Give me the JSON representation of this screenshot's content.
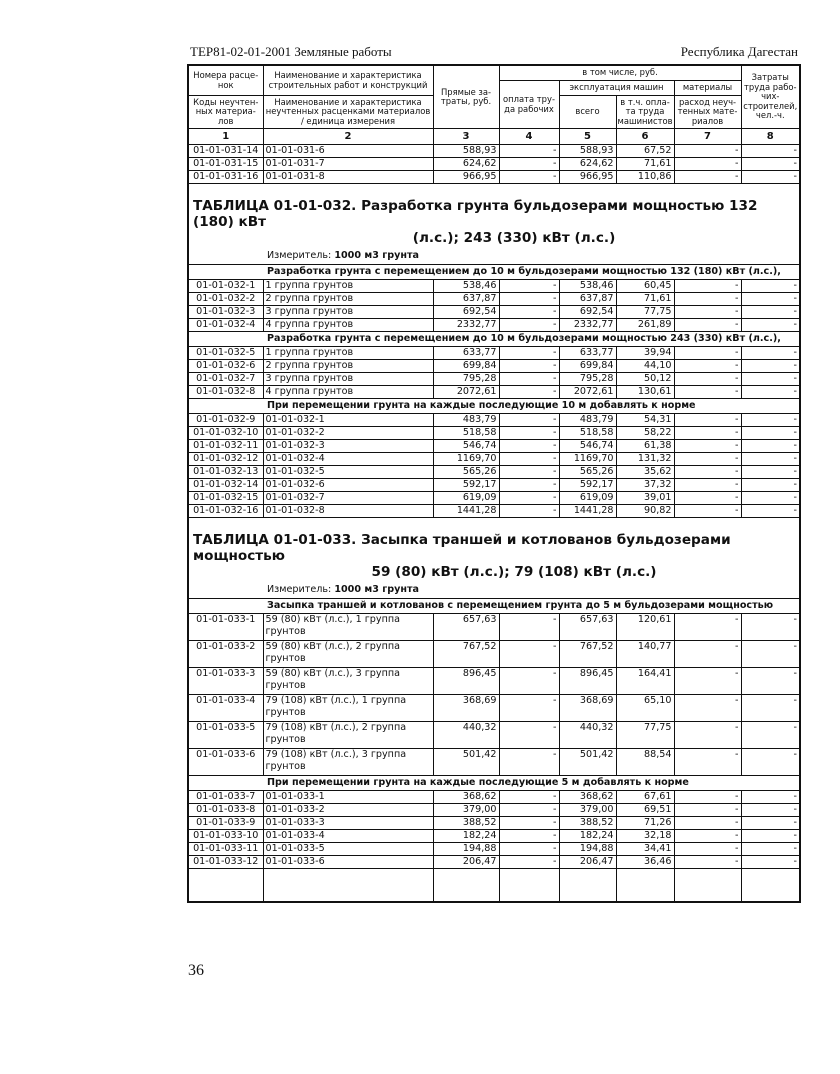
{
  "header": {
    "left": "ТЕР81-02-01-2001 Земляные работы",
    "right": "Республика Дагестан"
  },
  "columns": {
    "c1a": "Номера расце-нок",
    "c2a": "Наименование и характеристика строительных работ и конструкций",
    "c3": "Прямые за-траты, руб.",
    "group": "в том числе, руб.",
    "c8": "Затраты труда рабо-чих-строителей, чел.-ч.",
    "c4": "оплата тру-да рабочих",
    "machines": "эксплуатация машин",
    "materials": "материалы",
    "c1b": "Коды неучтен-ных материа-лов",
    "c2b": "Наименование и характеристика неучтенных расценками материалов / единица измерения",
    "c5": "всего",
    "c6": "в т.ч. опла-та труда машинистов",
    "c7": "расход неуч-тенных мате-риалов",
    "index": [
      "1",
      "2",
      "3",
      "4",
      "5",
      "6",
      "7",
      "8"
    ]
  },
  "blocks": [
    {
      "type": "rows",
      "rows": [
        [
          "01-01-031-14",
          "01-01-031-6",
          "588,93",
          "-",
          "588,93",
          "67,52",
          "-",
          "-"
        ],
        [
          "01-01-031-15",
          "01-01-031-7",
          "624,62",
          "-",
          "624,62",
          "71,61",
          "-",
          "-"
        ],
        [
          "01-01-031-16",
          "01-01-031-8",
          "966,95",
          "-",
          "966,95",
          "110,86",
          "-",
          "-"
        ]
      ]
    },
    {
      "type": "title",
      "line1": "ТАБЛИЦА  01-01-032.  Разработка грунта бульдозерами мощностью 132 (180) кВт",
      "line2": "(л.с.); 243 (330) кВт (л.с.)"
    },
    {
      "type": "measure",
      "label": "Измеритель: ",
      "value": "1000 м3 грунта"
    },
    {
      "type": "sub",
      "text": "Разработка грунта с перемещением до 10 м бульдозерами мощностью 132 (180) кВт (л.с.),"
    },
    {
      "type": "rows",
      "rows": [
        [
          "01-01-032-1",
          "1 группа грунтов",
          "538,46",
          "-",
          "538,46",
          "60,45",
          "-",
          "-"
        ],
        [
          "01-01-032-2",
          "2 группа грунтов",
          "637,87",
          "-",
          "637,87",
          "71,61",
          "-",
          "-"
        ],
        [
          "01-01-032-3",
          "3 группа грунтов",
          "692,54",
          "-",
          "692,54",
          "77,75",
          "-",
          "-"
        ],
        [
          "01-01-032-4",
          "4 группа грунтов",
          "2332,77",
          "-",
          "2332,77",
          "261,89",
          "-",
          "-"
        ]
      ]
    },
    {
      "type": "sub",
      "text": "Разработка грунта с перемещением до 10 м бульдозерами мощностью 243 (330) кВт (л.с.),"
    },
    {
      "type": "rows",
      "rows": [
        [
          "01-01-032-5",
          "1 группа грунтов",
          "633,77",
          "-",
          "633,77",
          "39,94",
          "-",
          "-"
        ],
        [
          "01-01-032-6",
          "2 группа грунтов",
          "699,84",
          "-",
          "699,84",
          "44,10",
          "-",
          "-"
        ],
        [
          "01-01-032-7",
          "3 группа грунтов",
          "795,28",
          "-",
          "795,28",
          "50,12",
          "-",
          "-"
        ],
        [
          "01-01-032-8",
          "4 группа грунтов",
          "2072,61",
          "-",
          "2072,61",
          "130,61",
          "-",
          "-"
        ]
      ]
    },
    {
      "type": "sub",
      "text": "При перемещении грунта на каждые последующие 10 м добавлять к норме"
    },
    {
      "type": "rows",
      "rows": [
        [
          "01-01-032-9",
          "01-01-032-1",
          "483,79",
          "-",
          "483,79",
          "54,31",
          "-",
          "-"
        ],
        [
          "01-01-032-10",
          "01-01-032-2",
          "518,58",
          "-",
          "518,58",
          "58,22",
          "-",
          "-"
        ],
        [
          "01-01-032-11",
          "01-01-032-3",
          "546,74",
          "-",
          "546,74",
          "61,38",
          "-",
          "-"
        ],
        [
          "01-01-032-12",
          "01-01-032-4",
          "1169,70",
          "-",
          "1169,70",
          "131,32",
          "-",
          "-"
        ],
        [
          "01-01-032-13",
          "01-01-032-5",
          "565,26",
          "-",
          "565,26",
          "35,62",
          "-",
          "-"
        ],
        [
          "01-01-032-14",
          "01-01-032-6",
          "592,17",
          "-",
          "592,17",
          "37,32",
          "-",
          "-"
        ],
        [
          "01-01-032-15",
          "01-01-032-7",
          "619,09",
          "-",
          "619,09",
          "39,01",
          "-",
          "-"
        ],
        [
          "01-01-032-16",
          "01-01-032-8",
          "1441,28",
          "-",
          "1441,28",
          "90,82",
          "-",
          "-"
        ]
      ]
    },
    {
      "type": "title",
      "line1": "ТАБЛИЦА  01-01-033.  Засыпка траншей и котлованов бульдозерами мощностью",
      "line2": "59 (80) кВт (л.с.); 79 (108) кВт (л.с.)"
    },
    {
      "type": "measure",
      "label": "Измеритель: ",
      "value": "1000 м3 грунта"
    },
    {
      "type": "sub",
      "text": "Засыпка траншей и котлованов с перемещением грунта до 5 м бульдозерами мощностью"
    },
    {
      "type": "rows",
      "double": true,
      "rows": [
        [
          "01-01-033-1",
          "59 (80) кВт (л.с.), 1 группа грунтов",
          "657,63",
          "-",
          "657,63",
          "120,61",
          "-",
          "-"
        ],
        [
          "01-01-033-2",
          "59 (80) кВт (л.с.), 2 группа грунтов",
          "767,52",
          "-",
          "767,52",
          "140,77",
          "-",
          "-"
        ],
        [
          "01-01-033-3",
          "59 (80) кВт (л.с.), 3 группа грунтов",
          "896,45",
          "-",
          "896,45",
          "164,41",
          "-",
          "-"
        ],
        [
          "01-01-033-4",
          "79 (108) кВт (л.с.), 1 группа грунтов",
          "368,69",
          "-",
          "368,69",
          "65,10",
          "-",
          "-"
        ],
        [
          "01-01-033-5",
          "79 (108) кВт (л.с.), 2 группа грунтов",
          "440,32",
          "-",
          "440,32",
          "77,75",
          "-",
          "-"
        ],
        [
          "01-01-033-6",
          "79 (108) кВт (л.с.), 3 группа грунтов",
          "501,42",
          "-",
          "501,42",
          "88,54",
          "-",
          "-"
        ]
      ]
    },
    {
      "type": "sub",
      "text": "При перемещении грунта на каждые последующие 5 м добавлять к норме"
    },
    {
      "type": "rows",
      "rows": [
        [
          "01-01-033-7",
          "01-01-033-1",
          "368,62",
          "-",
          "368,62",
          "67,61",
          "-",
          "-"
        ],
        [
          "01-01-033-8",
          "01-01-033-2",
          "379,00",
          "-",
          "379,00",
          "69,51",
          "-",
          "-"
        ],
        [
          "01-01-033-9",
          "01-01-033-3",
          "388,52",
          "-",
          "388,52",
          "71,26",
          "-",
          "-"
        ],
        [
          "01-01-033-10",
          "01-01-033-4",
          "182,24",
          "-",
          "182,24",
          "32,18",
          "-",
          "-"
        ],
        [
          "01-01-033-11",
          "01-01-033-5",
          "194,88",
          "-",
          "194,88",
          "34,41",
          "-",
          "-"
        ],
        [
          "01-01-033-12",
          "01-01-033-6",
          "206,47",
          "-",
          "206,47",
          "36,46",
          "-",
          "-"
        ]
      ]
    },
    {
      "type": "blank"
    }
  ],
  "page_number": "36"
}
